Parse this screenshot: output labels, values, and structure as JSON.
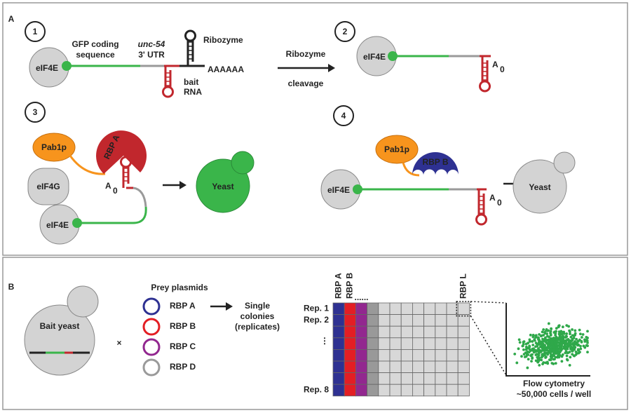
{
  "panel_a": {
    "label": "A",
    "step1": {
      "number": "1",
      "cap": "eIF4E",
      "gfp": [
        "GFP coding",
        "sequence"
      ],
      "utr": [
        "unc-54",
        "3' UTR"
      ],
      "ribozyme": "Ribozyme",
      "bait": [
        "bait",
        "RNA"
      ],
      "poly_a": "AAAAAA"
    },
    "transition": [
      "Ribozyme",
      "cleavage"
    ],
    "step2": {
      "number": "2",
      "cap": "eIF4E",
      "tail": {
        "base": "A",
        "sub": "0"
      }
    },
    "step3": {
      "number": "3",
      "pab": "Pab1p",
      "rbp": "RBP A",
      "eif4g": "eIF4G",
      "tail": {
        "base": "A",
        "sub": "0"
      },
      "cap": "eIF4E",
      "outcome": "Yeast"
    },
    "step4": {
      "number": "4",
      "pab": "Pab1p",
      "rbp": "RBP B",
      "cap": "eIF4E",
      "tail": {
        "base": "A",
        "sub": "0"
      },
      "outcome": "Yeast"
    }
  },
  "panel_b": {
    "label": "B",
    "bait": "Bait yeast",
    "cross": "×",
    "prey_title": "Prey plasmids",
    "prey": [
      "RBP A",
      "RBP B",
      "RBP C",
      "RBP D"
    ],
    "result": [
      "Single",
      "colonies",
      "(replicates)"
    ],
    "columns": [
      "RBP A",
      "RBP B",
      "......",
      "RBP L"
    ],
    "rows": [
      "Rep. 1",
      "Rep. 2",
      "⋮",
      "Rep. 8"
    ],
    "flow": [
      "Flow cytometry",
      "~50,000 cells / well"
    ]
  }
}
